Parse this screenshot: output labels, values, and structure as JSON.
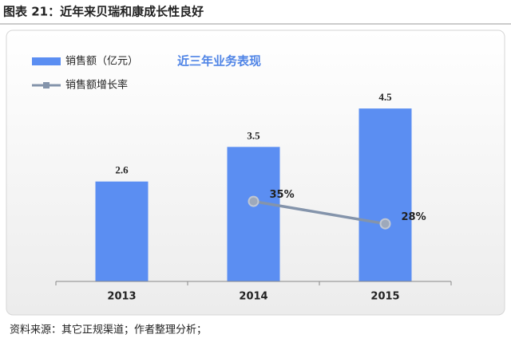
{
  "figure_title": "图表 21：近年来贝瑞和康成长性良好",
  "source": "资料来源：其它正规渠道；作者整理分析；",
  "chart_data": {
    "type": "bar",
    "title": "近三年业务表现",
    "categories": [
      "2013",
      "2014",
      "2015"
    ],
    "series": [
      {
        "name": "销售额（亿元）",
        "type": "bar",
        "color": "#5b8ef2",
        "values": [
          2.6,
          3.5,
          4.5
        ]
      },
      {
        "name": "销售额增长率",
        "type": "line",
        "color": "#8494ab",
        "axis": "y2",
        "values": [
          null,
          35,
          28
        ],
        "value_labels": [
          null,
          "35%",
          "28%"
        ]
      }
    ],
    "ylim": [
      0,
      5
    ],
    "y2lim": [
      10,
      70
    ],
    "legend": "top-left"
  }
}
